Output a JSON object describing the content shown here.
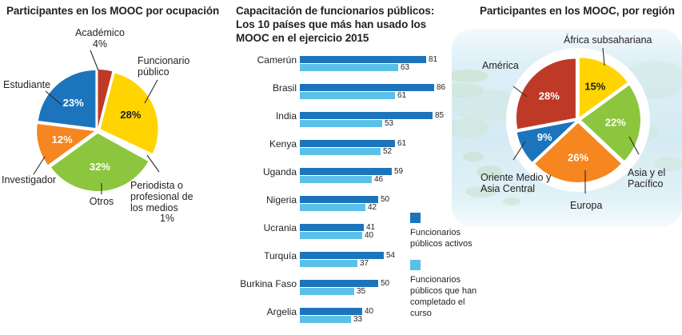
{
  "chart_data": [
    {
      "type": "pie",
      "title": "Participantes en los MOOC por ocupación",
      "slices": [
        {
          "label": "Académico",
          "value": 4,
          "pct_text": "4%",
          "color": "#be3a27",
          "inside": false,
          "text_color": "#231f20"
        },
        {
          "label": "Funcionario público",
          "value": 28,
          "pct_text": "28%",
          "color": "#ffd400",
          "inside": true,
          "text_color": "#231f20"
        },
        {
          "label": "Periodista o profesional de los medios",
          "value": 1,
          "pct_text": "1%",
          "color": "#ffffff",
          "inside": false,
          "text_color": "#231f20"
        },
        {
          "label": "Otros",
          "value": 32,
          "pct_text": "32%",
          "color": "#8cc63e",
          "inside": true,
          "text_color": "#ffffff"
        },
        {
          "label": "Investigador",
          "value": 12,
          "pct_text": "12%",
          "color": "#f6861f",
          "inside": true,
          "text_color": "#ffffff"
        },
        {
          "label": "Estudiante",
          "value": 23,
          "pct_text": "23%",
          "color": "#1c75bc",
          "inside": true,
          "text_color": "#ffffff"
        }
      ]
    },
    {
      "type": "bar",
      "title": "Capacitación de funcionarios públicos: Los 10 países que más han usado los MOOC en el ejercicio 2015",
      "categories": [
        "Camerún",
        "Brasil",
        "India",
        "Kenya",
        "Uganda",
        "Nigeria",
        "Ucrania",
        "Turquía",
        "Burkina Faso",
        "Argelia"
      ],
      "series": [
        {
          "name": "Funcionarios públicos activos",
          "color": "#1c75bc",
          "values": [
            81,
            86,
            85,
            61,
            59,
            50,
            41,
            54,
            50,
            40
          ]
        },
        {
          "name": "Funcionarios públicos que han completado el curso",
          "color": "#5bc0e8",
          "values": [
            63,
            61,
            53,
            52,
            46,
            42,
            40,
            37,
            35,
            33
          ]
        }
      ],
      "xlim": [
        0,
        86
      ],
      "legend_position": "right"
    },
    {
      "type": "pie",
      "title": "Participantes en los MOOC, por región",
      "slices": [
        {
          "label": "África subsahariana",
          "value": 15,
          "pct_text": "15%",
          "color": "#ffd400",
          "inside": true,
          "text_color": "#231f20"
        },
        {
          "label": "Asia y el Pacífico",
          "value": 22,
          "pct_text": "22%",
          "color": "#8cc63e",
          "inside": true,
          "text_color": "#ffffff"
        },
        {
          "label": "Europa",
          "value": 26,
          "pct_text": "26%",
          "color": "#f6861f",
          "inside": true,
          "text_color": "#ffffff"
        },
        {
          "label": "Oriente Medio y Asia Central",
          "value": 9,
          "pct_text": "9%",
          "color": "#1c75bc",
          "inside": true,
          "text_color": "#ffffff"
        },
        {
          "label": "América",
          "value": 28,
          "pct_text": "28%",
          "color": "#be3a27",
          "inside": true,
          "text_color": "#ffffff"
        }
      ]
    }
  ]
}
